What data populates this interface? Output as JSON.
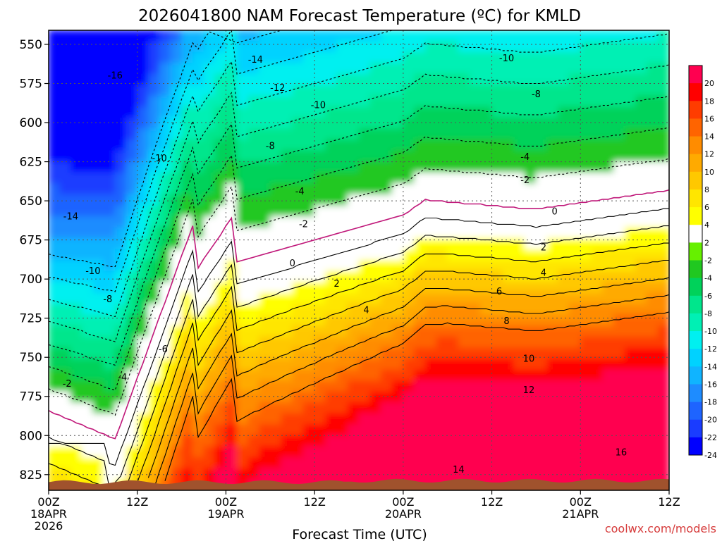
{
  "chart_data": {
    "type": "heatmap",
    "title": "2026041800 NAM Forecast Temperature (ºC) for KMLD",
    "xlabel": "Forecast Time (UTC)",
    "ylabel": "",
    "ylim": [
      541,
      835
    ],
    "y_ticks": [
      {
        "value": 550,
        "label": "550"
      },
      {
        "value": 575,
        "label": "575"
      },
      {
        "value": 600,
        "label": "600"
      },
      {
        "value": 625,
        "label": "625"
      },
      {
        "value": 650,
        "label": "650"
      },
      {
        "value": 675,
        "label": "675"
      },
      {
        "value": 700,
        "label": "700"
      },
      {
        "value": 725,
        "label": "725"
      },
      {
        "value": 750,
        "label": "750"
      },
      {
        "value": 775,
        "label": "775"
      },
      {
        "value": 800,
        "label": "800"
      },
      {
        "value": 825,
        "label": "825"
      }
    ],
    "xlim": [
      0,
      84
    ],
    "x_ticks": [
      {
        "value": 0,
        "lines": [
          "00Z",
          "18APR",
          "2026"
        ]
      },
      {
        "value": 12,
        "lines": [
          "12Z"
        ]
      },
      {
        "value": 24,
        "lines": [
          "00Z",
          "19APR"
        ]
      },
      {
        "value": 36,
        "lines": [
          "12Z"
        ]
      },
      {
        "value": 48,
        "lines": [
          "00Z",
          "20APR"
        ]
      },
      {
        "value": 60,
        "lines": [
          "12Z"
        ]
      },
      {
        "value": 72,
        "lines": [
          "00Z",
          "21APR"
        ]
      },
      {
        "value": 84,
        "lines": [
          "12Z"
        ]
      }
    ],
    "grid": true,
    "levels": [
      -24,
      -22,
      -20,
      -18,
      -16,
      -14,
      -12,
      -10,
      -8,
      -6,
      -4,
      -2,
      2,
      4,
      6,
      8,
      10,
      12,
      14,
      16,
      18,
      20
    ],
    "level_colors": [
      "#0000ff",
      "#1a3cff",
      "#1e64ff",
      "#1e8cff",
      "#10b4ff",
      "#00d2ff",
      "#00f0f0",
      "#00f0b4",
      "#00e68c",
      "#00d25a",
      "#20c820",
      "#66f000",
      "#ffffff",
      "#ffff00",
      "#ffe600",
      "#ffc800",
      "#ffaa00",
      "#ff8c00",
      "#ff6400",
      "#ff3c00",
      "#ff0000",
      "#ff0050"
    ],
    "colorbar_labels": [
      "20",
      "18",
      "16",
      "14",
      "12",
      "10",
      "8",
      "6",
      "4",
      "2",
      "-2",
      "-4",
      "-6",
      "-8",
      "-10",
      "-12",
      "-14",
      "-16",
      "-18",
      "-20",
      "-22",
      "-24"
    ],
    "freezing_line_color": "#c0187a",
    "terrain_color": "#a0522d",
    "contour_labels": [
      {
        "t": 28,
        "p": 560,
        "text": "-14"
      },
      {
        "t": 9,
        "p": 570,
        "text": "-16"
      },
      {
        "t": 31,
        "p": 578,
        "text": "-12"
      },
      {
        "t": 36.5,
        "p": 589,
        "text": "-10"
      },
      {
        "t": 62,
        "p": 559,
        "text": "-10"
      },
      {
        "t": 66,
        "p": 582,
        "text": "-8"
      },
      {
        "t": 30,
        "p": 615,
        "text": "-8"
      },
      {
        "t": 15,
        "p": 623,
        "text": "-10"
      },
      {
        "t": 3,
        "p": 660,
        "text": "-14"
      },
      {
        "t": 6,
        "p": 695,
        "text": "-10"
      },
      {
        "t": 8,
        "p": 713,
        "text": "-8"
      },
      {
        "t": 15.5,
        "p": 745,
        "text": "-6"
      },
      {
        "t": 10,
        "p": 763,
        "text": "-4"
      },
      {
        "t": 2.5,
        "p": 767,
        "text": "-2"
      },
      {
        "t": 34,
        "p": 644,
        "text": "-4"
      },
      {
        "t": 34.5,
        "p": 665,
        "text": "-2"
      },
      {
        "t": 64.5,
        "p": 622,
        "text": "-4"
      },
      {
        "t": 64.5,
        "p": 637,
        "text": "-2"
      },
      {
        "t": 33,
        "p": 690,
        "text": "0"
      },
      {
        "t": 68.5,
        "p": 657,
        "text": "0"
      },
      {
        "t": 39,
        "p": 703,
        "text": "2"
      },
      {
        "t": 43,
        "p": 720,
        "text": "4"
      },
      {
        "t": 67,
        "p": 680,
        "text": "2"
      },
      {
        "t": 67,
        "p": 696,
        "text": "4"
      },
      {
        "t": 61,
        "p": 708,
        "text": "6"
      },
      {
        "t": 62,
        "p": 727,
        "text": "8"
      },
      {
        "t": 65,
        "p": 751,
        "text": "10"
      },
      {
        "t": 65,
        "p": 771,
        "text": "12"
      },
      {
        "t": 55.5,
        "p": 822,
        "text": "14"
      },
      {
        "t": 77.5,
        "p": 811,
        "text": "16"
      }
    ]
  },
  "watermark": "coolwx.com/models"
}
